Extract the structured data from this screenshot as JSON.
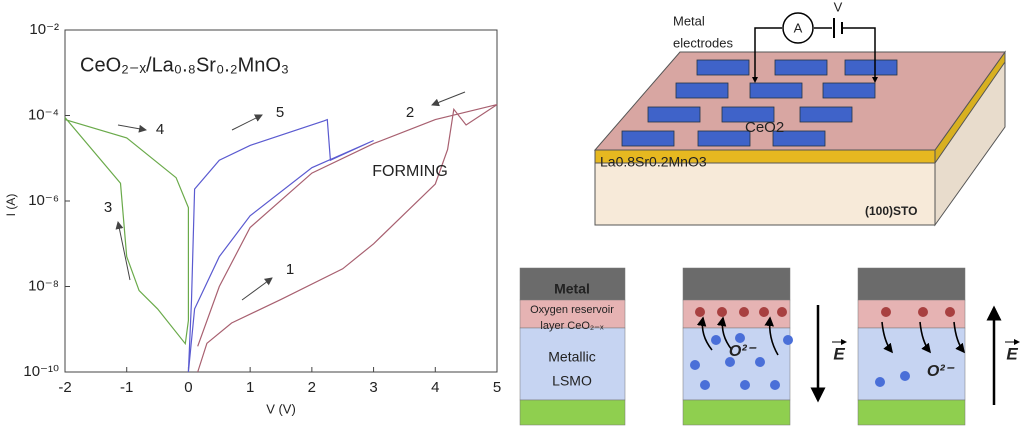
{
  "chart_data": {
    "type": "line",
    "title": "CeO₂₋ₓ/La₀.₈Sr₀.₂MnO₃",
    "xlabel": "V (V)",
    "ylabel": "I (A)",
    "xlim": [
      -2,
      5
    ],
    "xticks": [
      -2,
      -1,
      0,
      1,
      2,
      3,
      4,
      5
    ],
    "ylim": [
      1e-10,
      0.01
    ],
    "ylog": true,
    "yticks": [
      {
        "value": 1e-10,
        "label": "10⁻¹⁰"
      },
      {
        "value": 1e-08,
        "label": "10⁻⁸"
      },
      {
        "value": 1e-06,
        "label": "10⁻⁶"
      },
      {
        "value": 0.0001,
        "label": "10⁻⁴"
      },
      {
        "value": 0.01,
        "label": "10⁻²"
      }
    ],
    "grid": false,
    "series": [
      {
        "color": "#a86070",
        "x": [
          0.15,
          0.3,
          0.7,
          1.5,
          2.5,
          3.0,
          3.5,
          4.0,
          4.2,
          4.3,
          4.5,
          5.0,
          4.0,
          3.0,
          2.0,
          1.0,
          0.5,
          0.15
        ],
        "values": [
          1e-10,
          4.7e-10,
          1.4e-09,
          5e-09,
          2.6e-08,
          1e-07,
          5e-07,
          2.5e-06,
          1.6e-05,
          0.00014,
          6e-05,
          0.00018,
          8e-05,
          2.2e-05,
          4.5e-06,
          2.4e-07,
          1e-08,
          4e-10
        ]
      },
      {
        "color": "#5a5ad0",
        "x": [
          0.0,
          0.05,
          0.1,
          0.5,
          1.0,
          2.2,
          2.25,
          2.3,
          3.0,
          2.0,
          1.0,
          0.5,
          0.1,
          0.0
        ],
        "values": [
          1e-10,
          4.7e-09,
          1.9e-06,
          9e-06,
          2e-05,
          7.5e-05,
          8e-05,
          9e-06,
          2.6e-05,
          6e-06,
          4.5e-07,
          5e-08,
          3e-09,
          1e-10
        ]
      },
      {
        "color": "#6aaa4a",
        "x": [
          -2.0,
          -1.0,
          -0.2,
          0.0,
          0.0,
          -0.05,
          -0.5,
          -0.8,
          -1.0,
          -1.1,
          -2.0
        ],
        "values": [
          8e-05,
          3e-05,
          3.5e-06,
          7e-07,
          1.6e-09,
          4.6e-10,
          3e-09,
          8e-09,
          5e-08,
          2.6e-06,
          9e-05
        ]
      }
    ],
    "annotations": [
      "1",
      "2",
      "3",
      "4",
      "5",
      "FORMING"
    ]
  },
  "schematic": {
    "device": {
      "electrode_label": [
        "Metal",
        "electrodes"
      ],
      "ammeter": "A",
      "voltage": "V",
      "layers": [
        "CeO2",
        "La0.8Sr0.2MnO3",
        "(100)STO"
      ]
    },
    "mechanism": {
      "metal": "Metal",
      "reservoir": [
        "Oxygen reservoir",
        "layer CeO₂₋ₓ"
      ],
      "lsmo": [
        "Metallic",
        "LSMO"
      ],
      "ion": [
        "O²⁻",
        "O²⁻"
      ],
      "field": [
        "E",
        "E"
      ]
    }
  }
}
